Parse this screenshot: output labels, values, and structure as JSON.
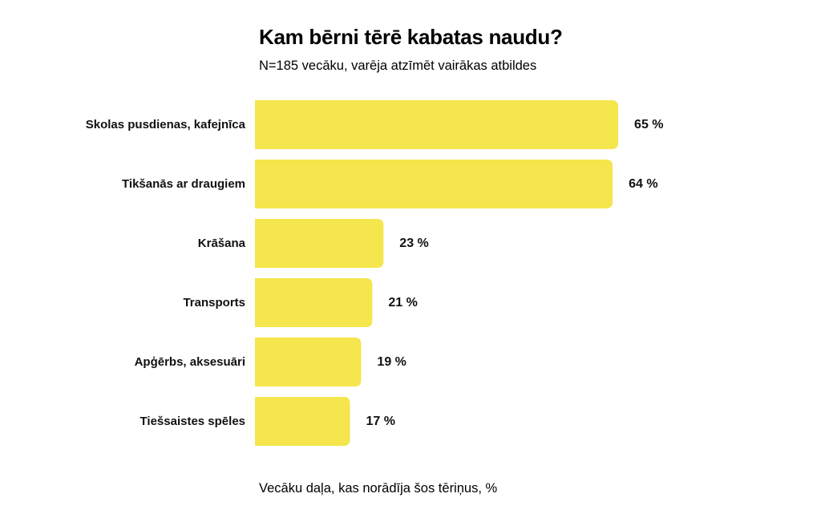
{
  "header": {
    "title": "Kam bērni tērē kabatas naudu?",
    "subtitle": "N=185 vecāku, varēja atzīmēt vairākas atbildes"
  },
  "footnote": "Vecāku daļa, kas norādīja šos tēriņus, %",
  "colors": {
    "bar": "#F4E64C",
    "text": "#111111"
  },
  "chart_data": {
    "type": "bar",
    "orientation": "horizontal",
    "categories": [
      "Skolas pusdienas, kafejnīca",
      "Tikšanās ar draugiem",
      "Krāšana",
      "Transports",
      "Apģērbs, aksesuāri",
      "Tiešsaistes spēles"
    ],
    "values": [
      65,
      64,
      23,
      21,
      19,
      17
    ],
    "value_labels": [
      "65 %",
      "64 %",
      "23 %",
      "21 %",
      "19 %",
      "17 %"
    ],
    "xlim": [
      0,
      100
    ],
    "grid": false,
    "unit": "%"
  }
}
